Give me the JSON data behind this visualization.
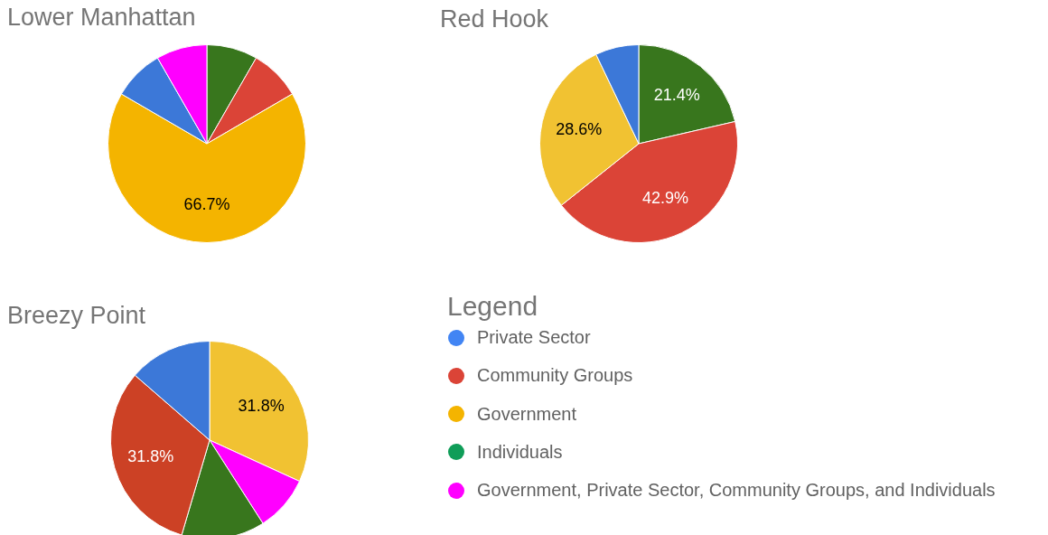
{
  "chart_data": [
    {
      "type": "pie",
      "title": "Lower Manhattan",
      "categories": [
        null,
        null,
        null,
        null,
        null
      ],
      "values": [
        8.3,
        8.3,
        66.7,
        8.3,
        8.3
      ],
      "colors": [
        "#38761d",
        "#db4437",
        "#f4b400",
        "#3c78d8",
        "#ff00ff"
      ],
      "value_labels": [
        null,
        null,
        "66.7%",
        null,
        null
      ]
    },
    {
      "type": "pie",
      "title": "Red Hook",
      "categories": [
        null,
        null,
        null,
        null
      ],
      "values": [
        21.4,
        42.9,
        28.6,
        7.1
      ],
      "colors": [
        "#38761d",
        "#db4437",
        "#f1c232",
        "#3c78d8"
      ],
      "value_labels": [
        "21.4%",
        "42.9%",
        "28.6%",
        null
      ]
    },
    {
      "type": "pie",
      "title": "Breezy Point",
      "categories": [
        null,
        null,
        null,
        null,
        null
      ],
      "values": [
        31.8,
        9.1,
        13.6,
        31.8,
        13.6
      ],
      "colors": [
        "#f1c232",
        "#ff00ff",
        "#38761d",
        "#cc4125",
        "#3c78d8"
      ],
      "value_labels": [
        "31.8%",
        null,
        null,
        "31.8%",
        null
      ]
    },
    {
      "type": "other",
      "title": "Legend",
      "categories": [
        "Private Sector",
        "Community Groups",
        "Government",
        "Individuals",
        "Government, Private Sector, Community Groups, and Individuals"
      ],
      "colors": [
        "#4285f4",
        "#db4437",
        "#f4b400",
        "#0f9d58",
        "#ff00ff"
      ]
    }
  ]
}
